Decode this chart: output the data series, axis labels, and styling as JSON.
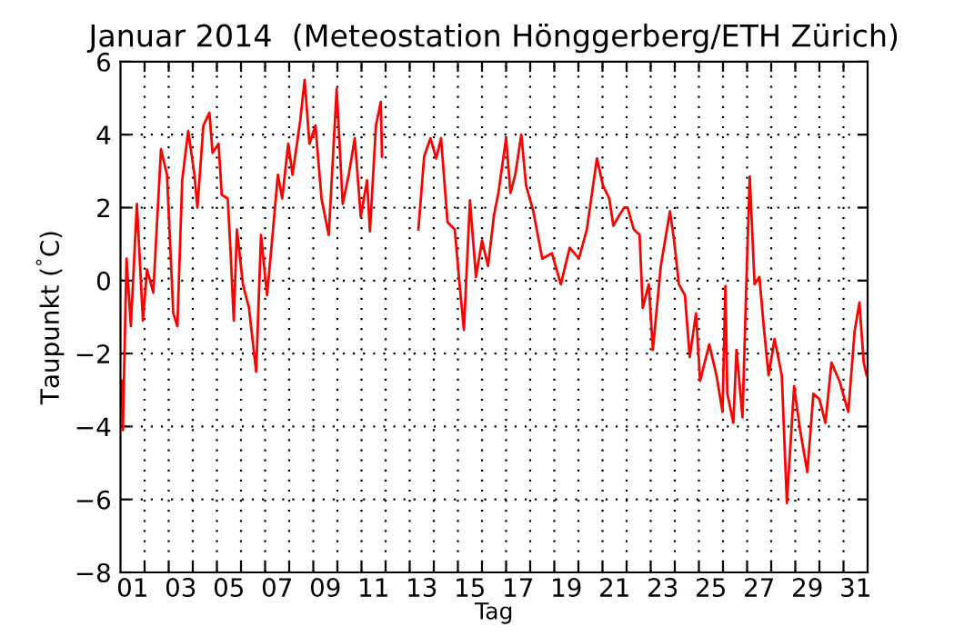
{
  "chart_data": {
    "type": "line",
    "title": "Januar 2014  (Meteostation Hönggerberg/ETH Zürich)",
    "xlabel": "Tag",
    "ylabel": "Taupunkt ($^{°}$C)",
    "xlim": [
      1,
      32
    ],
    "ylim": [
      -8,
      6
    ],
    "yticks": [
      -8,
      -6,
      -4,
      -2,
      0,
      2,
      4,
      6
    ],
    "xticks": [
      {
        "value": 1.5,
        "label": "01"
      },
      {
        "value": 3.5,
        "label": "03"
      },
      {
        "value": 5.5,
        "label": "05"
      },
      {
        "value": 7.5,
        "label": "07"
      },
      {
        "value": 9.5,
        "label": "09"
      },
      {
        "value": 11.5,
        "label": "11"
      },
      {
        "value": 13.5,
        "label": "13"
      },
      {
        "value": 15.5,
        "label": "15"
      },
      {
        "value": 17.5,
        "label": "17"
      },
      {
        "value": 19.5,
        "label": "19"
      },
      {
        "value": 21.5,
        "label": "21"
      },
      {
        "value": 23.5,
        "label": "23"
      },
      {
        "value": 25.5,
        "label": "25"
      },
      {
        "value": 27.5,
        "label": "27"
      },
      {
        "value": 29.5,
        "label": "29"
      },
      {
        "value": 31.5,
        "label": "31"
      },
      {
        "value": 2,
        "label": null
      },
      {
        "value": 3,
        "label": null
      },
      {
        "value": 4,
        "label": null
      },
      {
        "value": 5,
        "label": null
      },
      {
        "value": 6,
        "label": null
      },
      {
        "value": 7,
        "label": null
      },
      {
        "value": 8,
        "label": null
      },
      {
        "value": 9,
        "label": null
      },
      {
        "value": 10,
        "label": null
      },
      {
        "value": 11,
        "label": null
      },
      {
        "value": 12,
        "label": null
      },
      {
        "value": 13,
        "label": null
      },
      {
        "value": 14,
        "label": null
      },
      {
        "value": 15,
        "label": null
      },
      {
        "value": 16,
        "label": null
      },
      {
        "value": 17,
        "label": null
      },
      {
        "value": 18,
        "label": null
      },
      {
        "value": 19,
        "label": null
      },
      {
        "value": 20,
        "label": null
      },
      {
        "value": 21,
        "label": null
      },
      {
        "value": 22,
        "label": null
      },
      {
        "value": 23,
        "label": null
      },
      {
        "value": 24,
        "label": null
      },
      {
        "value": 25,
        "label": null
      },
      {
        "value": 26,
        "label": null
      },
      {
        "value": 27,
        "label": null
      },
      {
        "value": 28,
        "label": null
      },
      {
        "value": 29,
        "label": null
      },
      {
        "value": 30,
        "label": null
      },
      {
        "value": 31,
        "label": null
      }
    ],
    "grid": true,
    "line_style": "solid",
    "series": [
      {
        "color": "#ff0000",
        "x": [
          1.05,
          1.1,
          1.25,
          1.43,
          1.68,
          1.93,
          2.1,
          2.36,
          2.68,
          2.93,
          3.19,
          3.36,
          3.56,
          3.81,
          4.07,
          4.19,
          4.44,
          4.69,
          4.82,
          5.07,
          5.2,
          5.45,
          5.57,
          5.7,
          5.83,
          6.08,
          6.33,
          6.63,
          6.83,
          7.08,
          7.33,
          7.53,
          7.71,
          7.96,
          8.14,
          8.46,
          8.64,
          8.84,
          9.09,
          9.34,
          9.64,
          9.97,
          10.22,
          10.47,
          10.72,
          10.97,
          11.23,
          11.35,
          11.6,
          11.8,
          11.85,
          12.6,
          13.36,
          13.6,
          13.86,
          14.1,
          14.3,
          14.57,
          14.87,
          15.07,
          15.25,
          15.5,
          15.75,
          16.0,
          16.25,
          16.5,
          16.68,
          17.0,
          17.18,
          17.38,
          17.63,
          17.83,
          18.13,
          18.5,
          18.9,
          19.27,
          19.64,
          20.02,
          20.35,
          20.77,
          21.02,
          21.28,
          21.45,
          21.66,
          21.9,
          22.04,
          22.3,
          22.54,
          22.67,
          22.92,
          23.09,
          23.42,
          23.8,
          23.97,
          24.17,
          24.42,
          24.62,
          24.88,
          25.05,
          25.43,
          25.73,
          25.98,
          26.1,
          26.18,
          26.43,
          26.56,
          26.81,
          26.99,
          27.11,
          27.31,
          27.51,
          27.69,
          27.89,
          28.14,
          28.44,
          28.65,
          28.95,
          29.2,
          29.5,
          29.75,
          30.0,
          30.25,
          30.5,
          30.83,
          31.2,
          31.46,
          31.66,
          31.84,
          31.96
        ],
        "values": [
          -2.75,
          -4.1,
          0.6,
          -1.25,
          2.1,
          -1.1,
          0.3,
          -0.33,
          3.6,
          2.9,
          -0.9,
          -1.25,
          2.75,
          4.1,
          2.9,
          2.0,
          4.25,
          4.6,
          3.5,
          3.75,
          2.35,
          2.25,
          0.75,
          -1.1,
          1.4,
          -0.1,
          -0.75,
          -2.5,
          1.25,
          -0.4,
          1.4,
          2.9,
          2.25,
          3.75,
          2.9,
          4.4,
          5.5,
          3.75,
          4.25,
          2.25,
          1.25,
          5.25,
          2.1,
          2.9,
          3.9,
          1.75,
          2.75,
          1.35,
          4.25,
          4.9,
          3.4,
          null,
          1.4,
          3.4,
          3.9,
          3.35,
          3.9,
          1.6,
          1.4,
          -0.1,
          -1.35,
          2.2,
          0.1,
          1.1,
          0.4,
          1.8,
          2.4,
          3.9,
          2.4,
          2.9,
          4.0,
          2.6,
          1.9,
          0.6,
          0.75,
          -0.1,
          0.9,
          0.6,
          1.4,
          3.35,
          2.6,
          2.25,
          1.5,
          1.75,
          2.0,
          2.0,
          1.4,
          1.25,
          -0.75,
          -0.1,
          -1.9,
          0.4,
          1.9,
          1.1,
          -0.1,
          -0.4,
          -2.1,
          -0.9,
          -2.75,
          -1.75,
          -2.6,
          -3.6,
          -0.15,
          -3.1,
          -3.9,
          -1.9,
          -3.75,
          0.4,
          2.85,
          -0.1,
          0.1,
          -1.25,
          -2.6,
          -1.6,
          -2.6,
          -6.1,
          -2.9,
          -4.1,
          -5.25,
          -3.1,
          -3.25,
          -3.9,
          -2.25,
          -2.75,
          -3.6,
          -1.4,
          -0.6,
          -2.25,
          -2.6
        ]
      }
    ]
  }
}
